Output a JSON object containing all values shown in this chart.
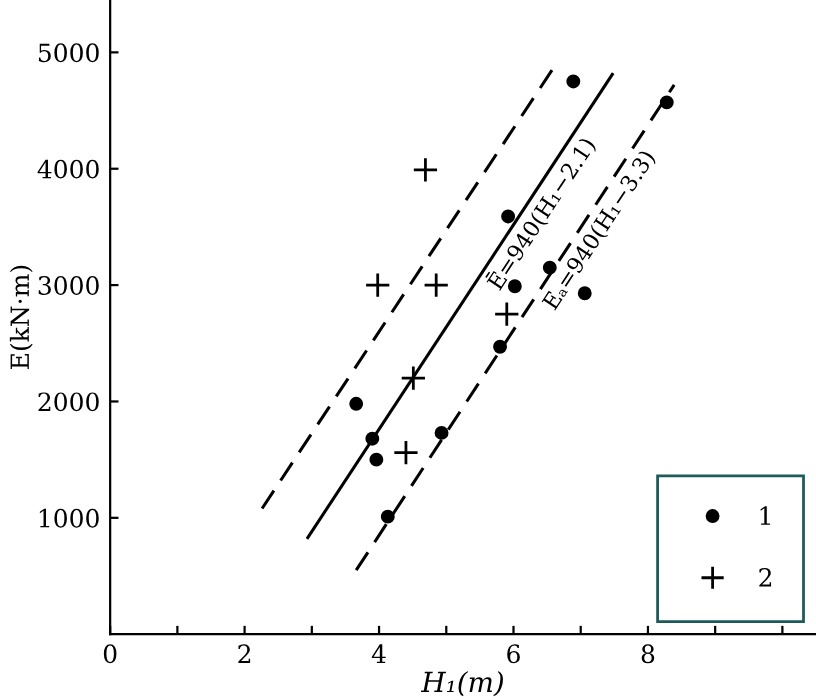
{
  "chart_data": {
    "type": "scatter",
    "xlabel": "H₁(m)",
    "ylabel": "E(kN·m)",
    "xlim": [
      0,
      10.5
    ],
    "ylim": [
      0,
      5450
    ],
    "xticks": [
      0,
      {
        "value": 1,
        "label": null
      },
      2,
      {
        "value": 3,
        "label": null
      },
      4,
      {
        "value": 5,
        "label": null
      },
      6,
      {
        "value": 7,
        "label": null
      },
      8,
      {
        "value": 9,
        "label": null
      },
      {
        "value": 10,
        "label": null
      }
    ],
    "yticks": [
      1000,
      2000,
      3000,
      4000,
      5000
    ],
    "grid": false,
    "legend": "bottom right",
    "series": [
      {
        "name": "1",
        "marker": "circle",
        "color": "#000000",
        "x": [
          3.66,
          3.9,
          3.96,
          4.13,
          4.93,
          5.8,
          6.02,
          5.92,
          6.54,
          7.06,
          6.89,
          8.28
        ],
        "values": [
          1980,
          1680,
          1500,
          1010,
          1730,
          2470,
          2990,
          3590,
          3150,
          2930,
          4750,
          4570
        ]
      },
      {
        "name": "2",
        "marker": "cross",
        "color": "#000000",
        "x": [
          4.69,
          3.98,
          4.85,
          4.51,
          4.4,
          5.9
        ],
        "values": [
          3990,
          3000,
          3000,
          2200,
          1560,
          2750
        ]
      },
      {
        "type": "line",
        "line_style": "solid",
        "color": "#000000",
        "x": [
          2.94,
          7.47
        ],
        "values": [
          830,
          4810
        ]
      },
      {
        "type": "line",
        "line_style": "dashed",
        "color": "#000000",
        "x": [
          2.26,
          6.61
        ],
        "values": [
          1080,
          4880
        ]
      },
      {
        "type": "line",
        "line_style": "dashed",
        "color": "#000000",
        "x": [
          3.66,
          8.39
        ],
        "values": [
          550,
          4720
        ]
      }
    ],
    "annotations": [
      "Ē=940(H₁−2.1)",
      "Eₐ=940(H₁−3.3)"
    ]
  }
}
